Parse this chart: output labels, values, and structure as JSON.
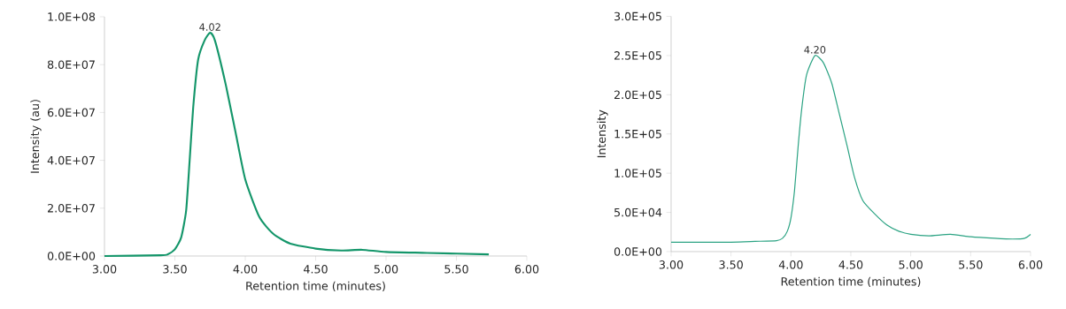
{
  "chart_data": [
    {
      "type": "line",
      "xlabel": "Retention time (minutes)",
      "ylabel": "Intensity (au)",
      "annotations": [
        {
          "text": "4.02",
          "x": 3.75,
          "y": 93300000
        }
      ],
      "x": [
        3.0,
        3.4,
        3.45,
        3.5,
        3.545,
        3.58,
        3.605,
        3.63,
        3.665,
        3.71,
        3.75,
        3.785,
        3.86,
        3.93,
        4.0,
        4.1,
        4.2,
        4.32,
        4.5,
        4.68,
        4.83,
        5.0,
        5.29,
        5.73
      ],
      "series": [
        {
          "color": "#14966a",
          "values": [
            0,
            300000,
            700000,
            2800000,
            7800000,
            19000000,
            40000000,
            62000000,
            82000000,
            90000000,
            93300000,
            90000000,
            72000000,
            52000000,
            32000000,
            16300000,
            9200000,
            5200000,
            3100000,
            2300000,
            2600000,
            1700000,
            1300000,
            700000
          ]
        }
      ],
      "xlim": [
        3,
        6
      ],
      "xticks": [
        {
          "value": 3,
          "label": "3.00"
        },
        {
          "value": 3.5,
          "label": "3.50"
        },
        {
          "value": 4,
          "label": "4.00"
        },
        {
          "value": 4.5,
          "label": "4.50"
        },
        {
          "value": 5,
          "label": "5.00"
        },
        {
          "value": 5.5,
          "label": "5.50"
        },
        {
          "value": 6,
          "label": "6.00"
        }
      ],
      "ylim": [
        0,
        100000000
      ],
      "yticks": [
        {
          "value": 0,
          "label": "0.0E+00"
        },
        {
          "value": 20000000,
          "label": "2.0E+07"
        },
        {
          "value": 40000000,
          "label": "4.0E+07"
        },
        {
          "value": 60000000,
          "label": "6.0E+07"
        },
        {
          "value": 80000000,
          "label": "8.0E+07"
        },
        {
          "value": 100000000,
          "label": "1.0E+08"
        }
      ]
    },
    {
      "type": "line",
      "xlabel": "Retention time (minutes)",
      "ylabel": "Intensity",
      "annotations": [
        {
          "text": "4.20",
          "x": 4.2,
          "y": 250000
        }
      ],
      "x": [
        3.0,
        3.5,
        3.7,
        3.88,
        3.93,
        3.97,
        4.0,
        4.03,
        4.06,
        4.09,
        4.13,
        4.2,
        4.27,
        4.34,
        4.4,
        4.47,
        4.53,
        4.6,
        4.7,
        4.8,
        4.9,
        5.0,
        5.15,
        5.33,
        5.5,
        5.7,
        5.85,
        5.95,
        6.0
      ],
      "series": [
        {
          "color": "#2ba383",
          "values": [
            12000,
            12000,
            13000,
            14000,
            17000,
            26000,
            43000,
            78000,
            134000,
            182000,
            225000,
            250000,
            241000,
            215000,
            178000,
            134000,
            95000,
            65000,
            48000,
            34000,
            26000,
            22000,
            20000,
            22000,
            19000,
            17000,
            16000,
            17000,
            22000
          ]
        }
      ],
      "xlim": [
        3,
        6
      ],
      "xticks": [
        {
          "value": 3,
          "label": "3.00"
        },
        {
          "value": 3.5,
          "label": "3.50"
        },
        {
          "value": 4,
          "label": "4.00"
        },
        {
          "value": 4.5,
          "label": "4.50"
        },
        {
          "value": 5,
          "label": "5.00"
        },
        {
          "value": 5.5,
          "label": "5.50"
        },
        {
          "value": 6,
          "label": "6.00"
        }
      ],
      "ylim": [
        0,
        300000
      ],
      "yticks": [
        {
          "value": 0,
          "label": "0.0E+00"
        },
        {
          "value": 50000,
          "label": "5.0E+04"
        },
        {
          "value": 100000,
          "label": "1.0E+05"
        },
        {
          "value": 150000,
          "label": "1.5E+05"
        },
        {
          "value": 200000,
          "label": "2.0E+05"
        },
        {
          "value": 250000,
          "label": "2.5E+05"
        },
        {
          "value": 300000,
          "label": "3.0E+05"
        }
      ]
    }
  ]
}
